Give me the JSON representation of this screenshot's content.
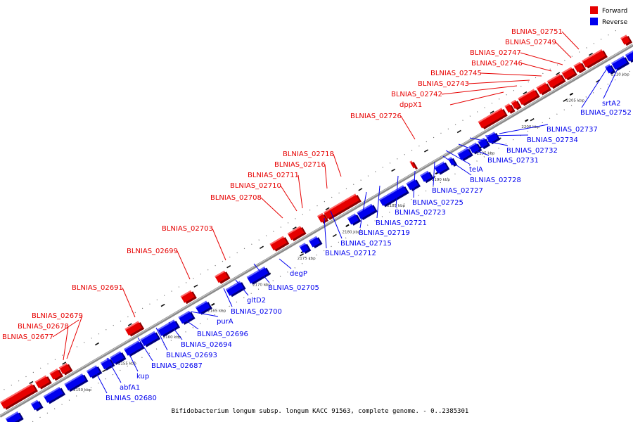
{
  "caption": "Bifidobacterium longum subsp. longum KACC 91563, complete genome. - 0..2385301",
  "legend": [
    {
      "label": "Forward",
      "color": "#e60000"
    },
    {
      "label": "Reverse",
      "color": "#0000ee"
    }
  ],
  "colors": {
    "forward": "#e60000",
    "reverse": "#0000ee",
    "backbone": "#8a8a8a"
  },
  "ticks": [
    "2150 kbp",
    "2155 kbp",
    "2160 kbp",
    "2165 kbp",
    "2170 kbp",
    "2175 kbp",
    "2180 kbp",
    "2185 kbp",
    "2190 kbp",
    "2195 kbp",
    "2200 kbp",
    "2205 kbp",
    "2210 kbp"
  ],
  "forward_labels": [
    "BLNIAS_02751",
    "BLNIAS_02749",
    "BLNIAS_02747",
    "BLNIAS_02746",
    "BLNIAS_02745",
    "BLNIAS_02743",
    "BLNIAS_02742",
    "dppX1",
    "BLNIAS_02726",
    "BLNIAS_02718",
    "BLNIAS_02716",
    "BLNIAS_02711",
    "BLNIAS_02710",
    "BLNIAS_02708",
    "BLNIAS_02703",
    "BLNIAS_02699",
    "BLNIAS_02691",
    "BLNIAS_02679",
    "BLNIAS_02678",
    "BLNIAS_02677"
  ],
  "reverse_labels": [
    "srtA2",
    "BLNIAS_02752",
    "BLNIAS_02737",
    "BLNIAS_02734",
    "BLNIAS_02732",
    "BLNIAS_02731",
    "telA",
    "BLNIAS_02728",
    "BLNIAS_02727",
    "BLNIAS_02725",
    "BLNIAS_02723",
    "BLNIAS_02721",
    "BLNIAS_02719",
    "BLNIAS_02715",
    "BLNIAS_02712",
    "degP",
    "BLNIAS_02705",
    "gltD2",
    "BLNIAS_02700",
    "purA",
    "BLNIAS_02696",
    "BLNIAS_02694",
    "BLNIAS_02693",
    "BLNIAS_02687",
    "kup",
    "abfA1",
    "BLNIAS_02680"
  ]
}
